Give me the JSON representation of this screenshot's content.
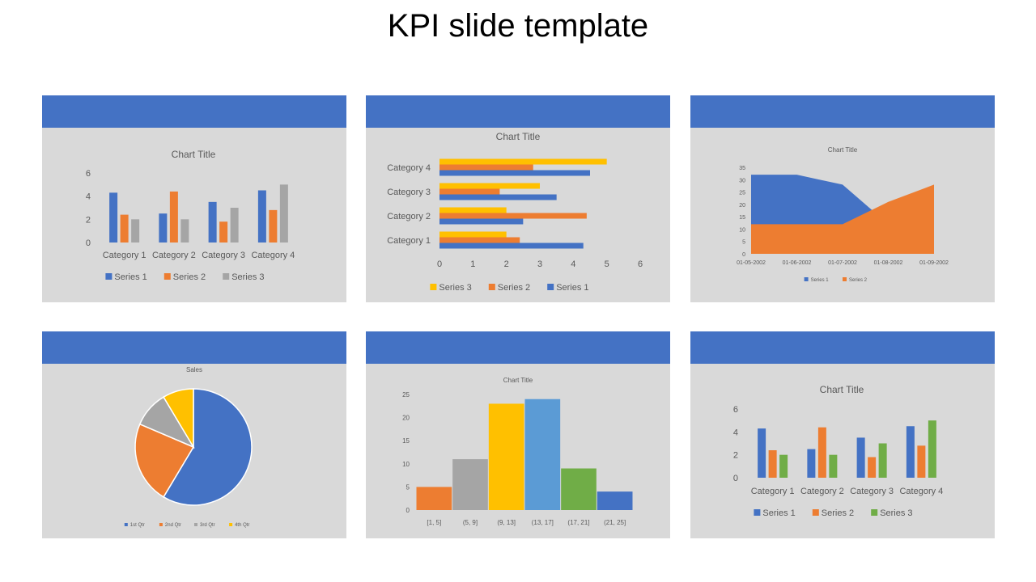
{
  "slide": {
    "title": "KPI slide template"
  },
  "colors": {
    "header": "#4472c4",
    "panel_bg": "#d9d9d9",
    "blue": "#4472c4",
    "orange": "#ed7d31",
    "gray": "#a5a5a5",
    "yellow": "#ffc000",
    "lightblue": "#5b9bd5",
    "green": "#70ad47"
  },
  "chart_data": [
    {
      "type": "bar",
      "title": "Chart Title",
      "categories": [
        "Category 1",
        "Category 2",
        "Category 3",
        "Category 4"
      ],
      "series": [
        {
          "name": "Series 1",
          "values": [
            4.3,
            2.5,
            3.5,
            4.5
          ],
          "color": "#4472c4"
        },
        {
          "name": "Series 2",
          "values": [
            2.4,
            4.4,
            1.8,
            2.8
          ],
          "color": "#ed7d31"
        },
        {
          "name": "Series 3",
          "values": [
            2,
            2,
            3,
            5
          ],
          "color": "#a5a5a5"
        }
      ],
      "yticks": [
        "0",
        "2",
        "4",
        "6"
      ],
      "ylim": [
        0,
        6
      ],
      "legend": "bottom"
    },
    {
      "type": "bar",
      "orientation": "horizontal",
      "title": "Chart Title",
      "categories": [
        "Category 1",
        "Category 2",
        "Category 3",
        "Category 4"
      ],
      "series": [
        {
          "name": "Series 1",
          "values": [
            4.3,
            2.5,
            3.5,
            4.5
          ],
          "color": "#4472c4"
        },
        {
          "name": "Series 2",
          "values": [
            2.4,
            4.4,
            1.8,
            2.8
          ],
          "color": "#ed7d31"
        },
        {
          "name": "Series 3",
          "values": [
            2,
            2,
            3,
            5
          ],
          "color": "#ffc000"
        }
      ],
      "legend_order": [
        "Series 3",
        "Series 2",
        "Series 1"
      ],
      "xticks": [
        "0",
        "1",
        "2",
        "3",
        "4",
        "5",
        "6"
      ],
      "xlim": [
        0,
        6
      ],
      "legend": "bottom"
    },
    {
      "type": "area",
      "title": "Chart Title",
      "x": [
        "01-05-2002",
        "01-06-2002",
        "01-07-2002",
        "01-08-2002",
        "01-09-2002"
      ],
      "series": [
        {
          "name": "Series 1",
          "values": [
            32,
            32,
            28,
            12,
            15
          ],
          "color": "#4472c4"
        },
        {
          "name": "Series 2",
          "values": [
            12,
            12,
            12,
            21,
            28
          ],
          "color": "#ed7d31"
        }
      ],
      "yticks": [
        "0",
        "5",
        "10",
        "15",
        "20",
        "25",
        "30",
        "35"
      ],
      "ylim": [
        0,
        35
      ],
      "legend": "bottom"
    },
    {
      "type": "pie",
      "title": "Sales",
      "categories": [
        "1st Qtr",
        "2nd Qtr",
        "3rd Qtr",
        "4th Qtr"
      ],
      "values": [
        8.2,
        3.2,
        1.4,
        1.2
      ],
      "colors": [
        "#4472c4",
        "#ed7d31",
        "#a5a5a5",
        "#ffc000"
      ],
      "legend": "bottom"
    },
    {
      "type": "bar",
      "subtype": "histogram",
      "title": "Chart Title",
      "categories": [
        "[1, 5]",
        "(5, 9]",
        "(9, 13]",
        "(13, 17]",
        "(17, 21]",
        "(21, 25]"
      ],
      "values": [
        5,
        11,
        23,
        24,
        9,
        4
      ],
      "colors": [
        "#ed7d31",
        "#a5a5a5",
        "#ffc000",
        "#5b9bd5",
        "#70ad47",
        "#4472c4"
      ],
      "yticks": [
        "0",
        "5",
        "10",
        "15",
        "20",
        "25"
      ],
      "ylim": [
        0,
        25
      ]
    },
    {
      "type": "bar",
      "title": "Chart Title",
      "categories": [
        "Category 1",
        "Category 2",
        "Category 3",
        "Category 4"
      ],
      "series": [
        {
          "name": "Series 1",
          "values": [
            4.3,
            2.5,
            3.5,
            4.5
          ],
          "color": "#4472c4"
        },
        {
          "name": "Series 2",
          "values": [
            2.4,
            4.4,
            1.8,
            2.8
          ],
          "color": "#ed7d31"
        },
        {
          "name": "Series 3",
          "values": [
            2,
            2,
            3,
            5
          ],
          "color": "#70ad47"
        }
      ],
      "yticks": [
        "0",
        "2",
        "4",
        "6"
      ],
      "ylim": [
        0,
        6
      ],
      "legend": "bottom"
    }
  ]
}
